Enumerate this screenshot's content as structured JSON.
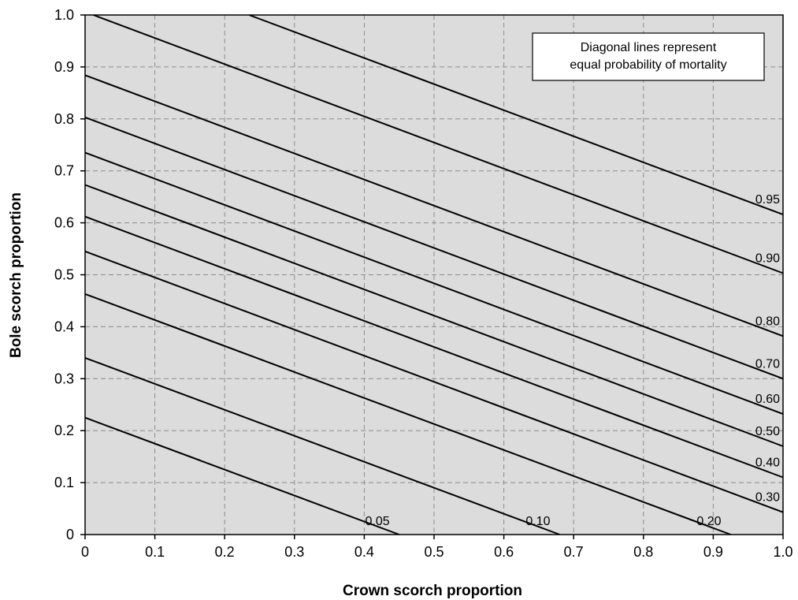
{
  "chart_data": {
    "type": "line",
    "title": "",
    "xlabel": "Crown scorch proportion",
    "ylabel": "Bole scorch proportion",
    "xlim": [
      0,
      1
    ],
    "ylim": [
      0,
      1
    ],
    "xticks": [
      0,
      0.1,
      0.2,
      0.3,
      0.4,
      0.5,
      0.6,
      0.7,
      0.8,
      0.9,
      1.0
    ],
    "xtick_labels": [
      "0",
      "0.1",
      "0.2",
      "0.3",
      "0.4",
      "0.5",
      "0.6",
      "0.7",
      "0.8",
      "0.9",
      "1.0"
    ],
    "yticks": [
      0,
      0.1,
      0.2,
      0.3,
      0.4,
      0.5,
      0.6,
      0.7,
      0.8,
      0.9,
      1.0
    ],
    "ytick_labels": [
      "0",
      "0.1",
      "0.2",
      "0.3",
      "0.4",
      "0.5",
      "0.6",
      "0.7",
      "0.8",
      "0.9",
      "1.0"
    ],
    "grid": true,
    "background_color": "#dcdcdc",
    "line_color": "#000000",
    "annotation": {
      "lines": [
        "Diagonal lines represent",
        "equal probability of mortality"
      ],
      "placement": "top-right"
    },
    "series": [
      {
        "label": "0.05",
        "x": [
          0,
          0.45
        ],
        "y": [
          0.225,
          0
        ]
      },
      {
        "label": "0.10",
        "x": [
          0,
          0.68
        ],
        "y": [
          0.34,
          0
        ]
      },
      {
        "label": "0.20",
        "x": [
          0,
          0.925
        ],
        "y": [
          0.463,
          0
        ]
      },
      {
        "label": "0.30",
        "x": [
          0,
          1.0
        ],
        "y": [
          0.545,
          0.043
        ]
      },
      {
        "label": "0.40",
        "x": [
          0,
          1.0
        ],
        "y": [
          0.612,
          0.11
        ]
      },
      {
        "label": "0.50",
        "x": [
          0,
          1.0
        ],
        "y": [
          0.673,
          0.17
        ]
      },
      {
        "label": "0.60",
        "x": [
          0,
          1.0
        ],
        "y": [
          0.735,
          0.232
        ]
      },
      {
        "label": "0.70",
        "x": [
          0,
          1.0
        ],
        "y": [
          0.803,
          0.3
        ]
      },
      {
        "label": "0.80",
        "x": [
          0,
          1.0
        ],
        "y": [
          0.884,
          0.382
        ]
      },
      {
        "label": "0.90",
        "x": [
          0.012,
          1.0
        ],
        "y": [
          1.0,
          0.503
        ]
      },
      {
        "label": "0.95",
        "x": [
          0.235,
          1.0
        ],
        "y": [
          1.0,
          0.616
        ]
      }
    ]
  }
}
